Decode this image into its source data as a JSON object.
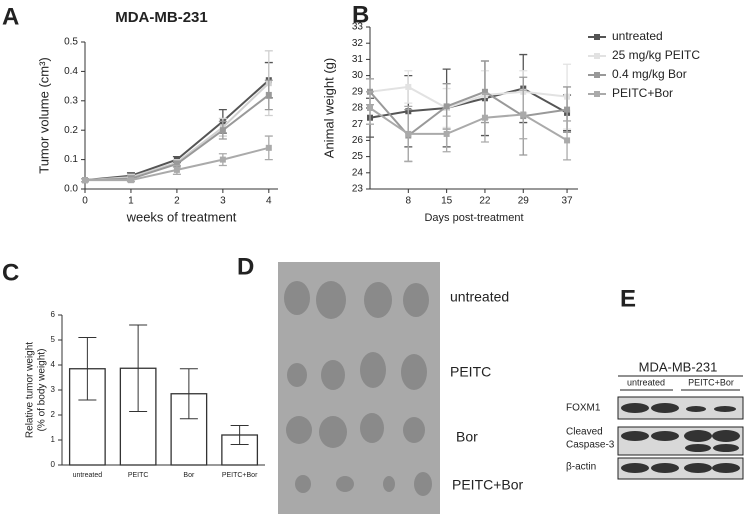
{
  "chart_data": [
    {
      "panel": "A",
      "type": "line",
      "title": "MDA-MB-231",
      "xlabel": "weeks of treatment",
      "ylabel": "Tumor volume (cm³)",
      "x": [
        0,
        1,
        2,
        3,
        4
      ],
      "xlim": [
        0,
        4.2
      ],
      "xticks": [
        0,
        1,
        2,
        3,
        4
      ],
      "ylim": [
        0,
        0.5
      ],
      "yticks": [
        {
          "value": 0,
          "label": "0.0"
        },
        0.1,
        0.2,
        0.3,
        0.4,
        0.5
      ],
      "series": [
        {
          "color": "#555555",
          "values": [
            0.03,
            0.045,
            0.1,
            0.23,
            0.37
          ],
          "errors": [
            0.005,
            0.01,
            0.01,
            0.04,
            0.06
          ]
        },
        {
          "color": "#d0d0d0",
          "values": [
            0.03,
            0.04,
            0.09,
            0.21,
            0.36
          ],
          "errors": [
            0.005,
            0.01,
            0.01,
            0.03,
            0.11
          ]
        },
        {
          "color": "#999999",
          "values": [
            0.03,
            0.035,
            0.085,
            0.2,
            0.32
          ],
          "errors": [
            0.005,
            0.01,
            0.01,
            0.03,
            0.05
          ]
        },
        {
          "color": "#aaaaaa",
          "values": [
            0.03,
            0.03,
            0.065,
            0.1,
            0.14
          ],
          "errors": [
            0.005,
            0.005,
            0.015,
            0.02,
            0.04
          ]
        }
      ]
    },
    {
      "panel": "B",
      "type": "line",
      "xlabel": "Days post-treatment",
      "ylabel": "Animal weight (g)",
      "x": [
        1,
        8,
        15,
        22,
        29,
        37
      ],
      "xlim": [
        1,
        39
      ],
      "xticks": [
        8,
        15,
        22,
        29,
        37
      ],
      "ylim": [
        23,
        33
      ],
      "yticks": [
        23,
        24,
        25,
        26,
        27,
        28,
        29,
        30,
        31,
        32,
        33
      ],
      "legend": "right",
      "series": [
        {
          "name": "untreated",
          "color": "#555555",
          "values": [
            27.4,
            27.8,
            28.0,
            28.6,
            29.2,
            27.7
          ],
          "errors": [
            1.2,
            2.2,
            2.4,
            2.3,
            2.1,
            1.1
          ]
        },
        {
          "name": "25 mg/kg PEITC",
          "color": "#e2e2e2",
          "values": [
            29.0,
            29.3,
            28.0,
            28.8,
            29.0,
            28.7
          ],
          "errors": [
            0.8,
            1.0,
            1.2,
            1.5,
            1.3,
            2.0
          ]
        },
        {
          "name": "0.4 mg/kg Bor",
          "color": "#999999",
          "values": [
            29.0,
            26.3,
            28.1,
            29.0,
            27.5,
            27.9
          ],
          "errors": [
            0.8,
            1.6,
            1.4,
            1.9,
            2.4,
            1.4
          ]
        },
        {
          "name": "PEITC+Bor",
          "color": "#aaaaaa",
          "values": [
            28.0,
            26.4,
            26.4,
            27.4,
            27.6,
            26.0
          ],
          "errors": [
            1.0,
            1.7,
            1.1,
            1.5,
            1.5,
            1.2
          ]
        }
      ]
    },
    {
      "panel": "C",
      "type": "bar",
      "ylabel": [
        "Relative tumor weight",
        "(% of body weight)"
      ],
      "categories": [
        "untreated",
        "PEITC",
        "Bor",
        "PEITC+Bor"
      ],
      "values": [
        3.85,
        3.87,
        2.85,
        1.2
      ],
      "errors": [
        1.25,
        1.73,
        1.0,
        0.38
      ],
      "color": "#ffffff",
      "ylim": [
        0,
        6
      ],
      "yticks": [
        0,
        1,
        2,
        3,
        4,
        5,
        6
      ]
    }
  ],
  "photo_panel": {
    "panel": "D",
    "labels": [
      "untreated",
      "PEITC",
      "Bor",
      "PEITC+Bor"
    ]
  },
  "blot_panel": {
    "panel": "E",
    "title": "MDA-MB-231",
    "groups": [
      "untreated",
      "PEITC+Bor"
    ],
    "rows": [
      [
        "FOXM1"
      ],
      [
        "Cleaved",
        "Caspase-3"
      ],
      [
        "β-actin"
      ]
    ]
  }
}
